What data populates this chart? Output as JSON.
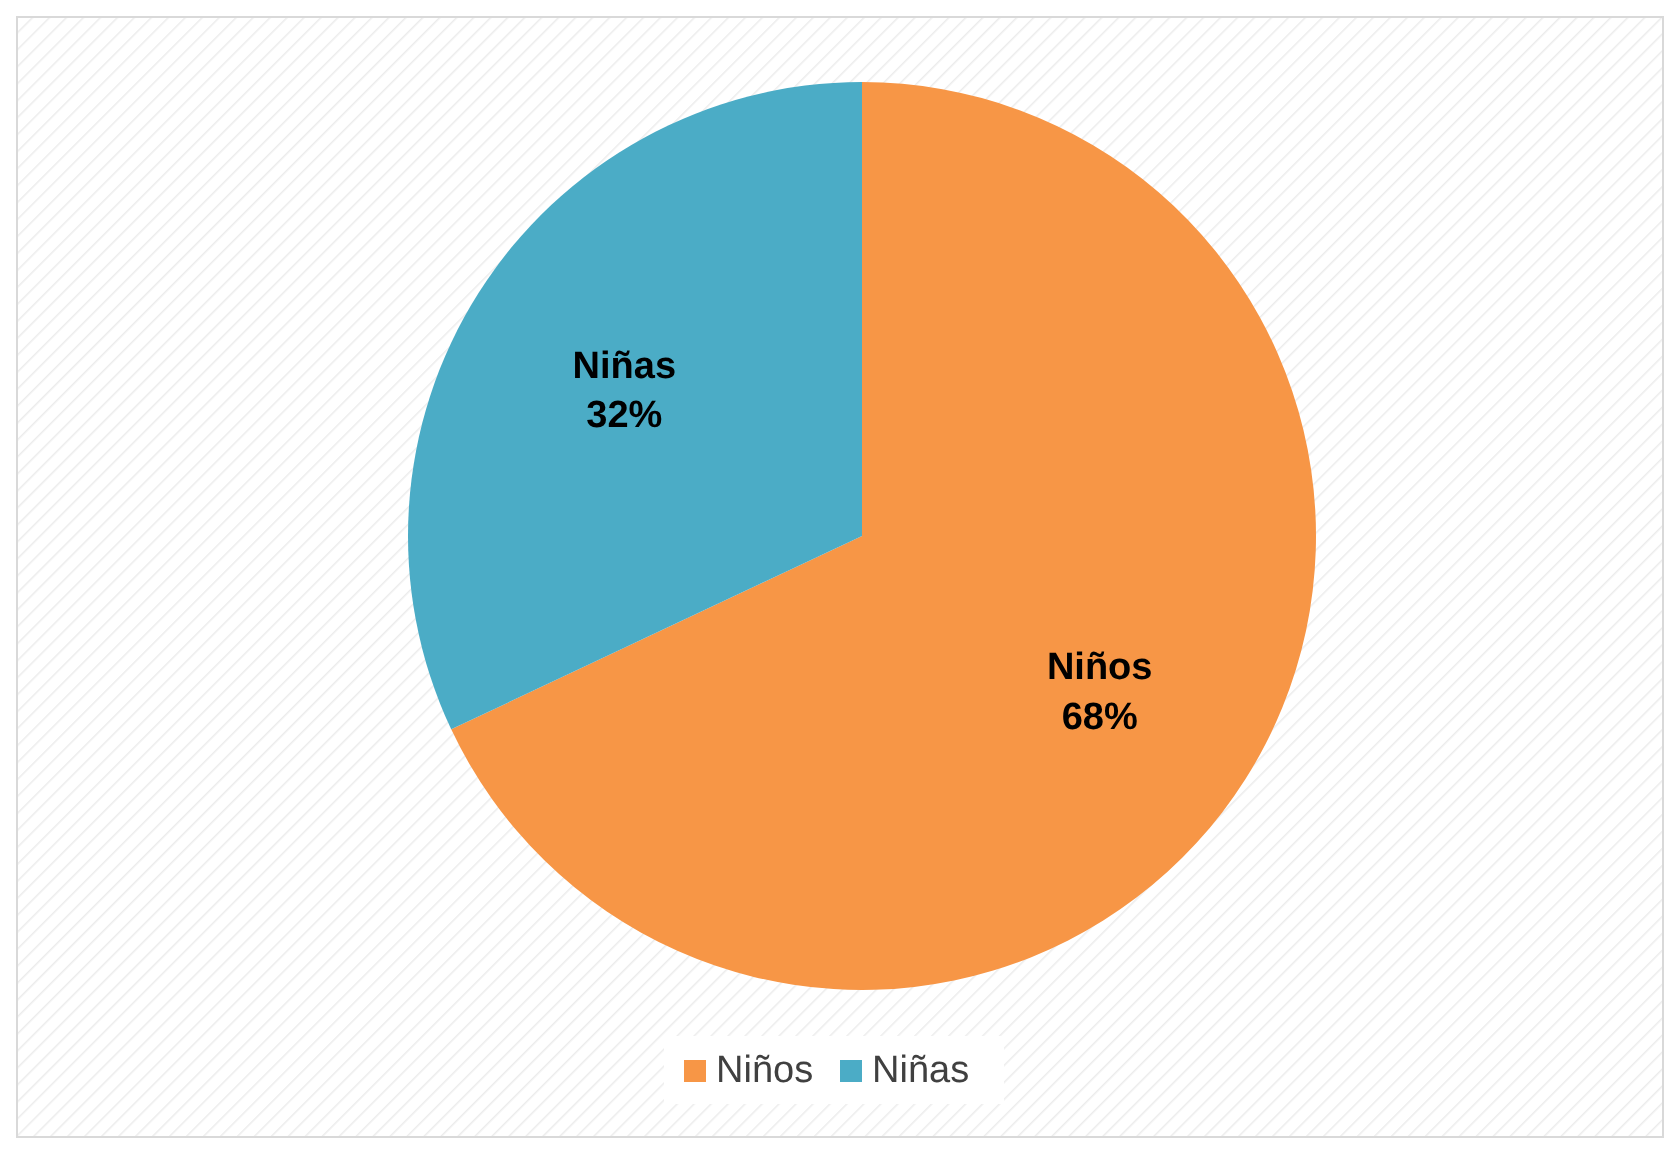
{
  "chart_data": {
    "type": "pie",
    "categories": [
      "Niños",
      "Niñas"
    ],
    "values": [
      68,
      32
    ],
    "colors": [
      "#f79646",
      "#4bacc6"
    ],
    "value_labels": [
      "68%",
      "32%"
    ],
    "legend": "bottom"
  }
}
